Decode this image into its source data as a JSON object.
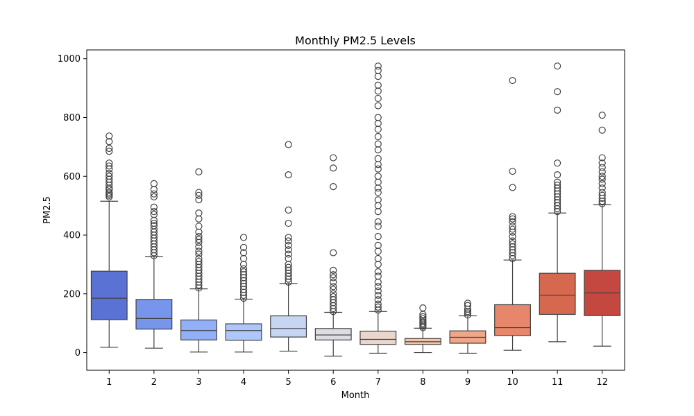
{
  "chart_data": {
    "type": "box",
    "title": "Monthly PM2.5 Levels",
    "xlabel": "Month",
    "ylabel": "PM2.5",
    "categories": [
      "1",
      "2",
      "3",
      "4",
      "5",
      "6",
      "7",
      "8",
      "9",
      "10",
      "11",
      "12"
    ],
    "ylim": [
      -60,
      1030
    ],
    "yticks": [
      0,
      200,
      400,
      600,
      800,
      1000
    ],
    "grid": false,
    "colors": [
      "#5a72d4",
      "#7895ec",
      "#92b0f8",
      "#adc7fa",
      "#c6d6f2",
      "#dcdee4",
      "#ead6cc",
      "#f5c3aa",
      "#f2a688",
      "#e6866a",
      "#d6684f",
      "#c44840"
    ],
    "boxes": [
      {
        "month": "1",
        "q1": 112,
        "median": 185,
        "q3": 277,
        "whisker_low": 18,
        "whisker_high": 515,
        "outliers": [
          530,
          535,
          540,
          545,
          555,
          560,
          570,
          580,
          590,
          600,
          610,
          625,
          635,
          645,
          685,
          695,
          718,
          737
        ]
      },
      {
        "month": "2",
        "q1": 80,
        "median": 116,
        "q3": 181,
        "whisker_low": 15,
        "whisker_high": 327,
        "outliers": [
          330,
          340,
          350,
          360,
          370,
          380,
          390,
          400,
          410,
          420,
          432,
          440,
          450,
          470,
          480,
          495,
          530,
          540,
          555,
          575
        ]
      },
      {
        "month": "3",
        "q1": 43,
        "median": 75,
        "q3": 111,
        "whisker_low": 2,
        "whisker_high": 217,
        "outliers": [
          220,
          230,
          240,
          250,
          260,
          270,
          280,
          290,
          300,
          310,
          320,
          335,
          345,
          360,
          375,
          385,
          395,
          410,
          430,
          455,
          475,
          520,
          535,
          545,
          615
        ]
      },
      {
        "month": "4",
        "q1": 42,
        "median": 75,
        "q3": 98,
        "whisker_low": 2,
        "whisker_high": 182,
        "outliers": [
          185,
          195,
          205,
          215,
          225,
          235,
          245,
          255,
          265,
          275,
          285,
          300,
          320,
          340,
          358,
          392
        ]
      },
      {
        "month": "5",
        "q1": 53,
        "median": 82,
        "q3": 125,
        "whisker_low": 5,
        "whisker_high": 235,
        "outliers": [
          240,
          250,
          260,
          270,
          280,
          290,
          300,
          320,
          335,
          350,
          365,
          380,
          392,
          440,
          485,
          605,
          708
        ]
      },
      {
        "month": "6",
        "q1": 43,
        "median": 60,
        "q3": 82,
        "whisker_low": -12,
        "whisker_high": 137,
        "outliers": [
          140,
          150,
          160,
          170,
          180,
          190,
          200,
          215,
          225,
          240,
          255,
          265,
          280,
          340,
          565,
          628,
          663
        ]
      },
      {
        "month": "7",
        "q1": 28,
        "median": 45,
        "q3": 73,
        "whisker_low": -2,
        "whisker_high": 140,
        "outliers": [
          145,
          155,
          165,
          180,
          195,
          210,
          225,
          240,
          260,
          275,
          300,
          320,
          345,
          365,
          395,
          430,
          445,
          480,
          500,
          520,
          545,
          560,
          580,
          600,
          625,
          640,
          660,
          690,
          710,
          735,
          760,
          780,
          800,
          840,
          865,
          890,
          910,
          940,
          960,
          975
        ]
      },
      {
        "month": "8",
        "q1": 28,
        "median": 37,
        "q3": 48,
        "whisker_low": 0,
        "whisker_high": 83,
        "outliers": [
          85,
          90,
          95,
          100,
          105,
          110,
          115,
          122,
          130,
          152
        ]
      },
      {
        "month": "9",
        "q1": 32,
        "median": 52,
        "q3": 74,
        "whisker_low": -2,
        "whisker_high": 125,
        "outliers": [
          128,
          135,
          140,
          148,
          160,
          168
        ]
      },
      {
        "month": "10",
        "q1": 58,
        "median": 85,
        "q3": 163,
        "whisker_low": 8,
        "whisker_high": 315,
        "outliers": [
          320,
          330,
          340,
          350,
          360,
          370,
          380,
          395,
          410,
          420,
          430,
          445,
          455,
          463,
          562,
          617,
          926
        ]
      },
      {
        "month": "11",
        "q1": 130,
        "median": 195,
        "q3": 270,
        "whisker_low": 37,
        "whisker_high": 475,
        "outliers": [
          480,
          490,
          500,
          510,
          520,
          530,
          540,
          550,
          560,
          570,
          580,
          605,
          645,
          825,
          888,
          975
        ]
      },
      {
        "month": "12",
        "q1": 126,
        "median": 203,
        "q3": 280,
        "whisker_low": 22,
        "whisker_high": 503,
        "outliers": [
          507,
          515,
          525,
          535,
          545,
          560,
          575,
          590,
          600,
          615,
          630,
          645,
          663,
          757,
          808
        ]
      }
    ]
  }
}
